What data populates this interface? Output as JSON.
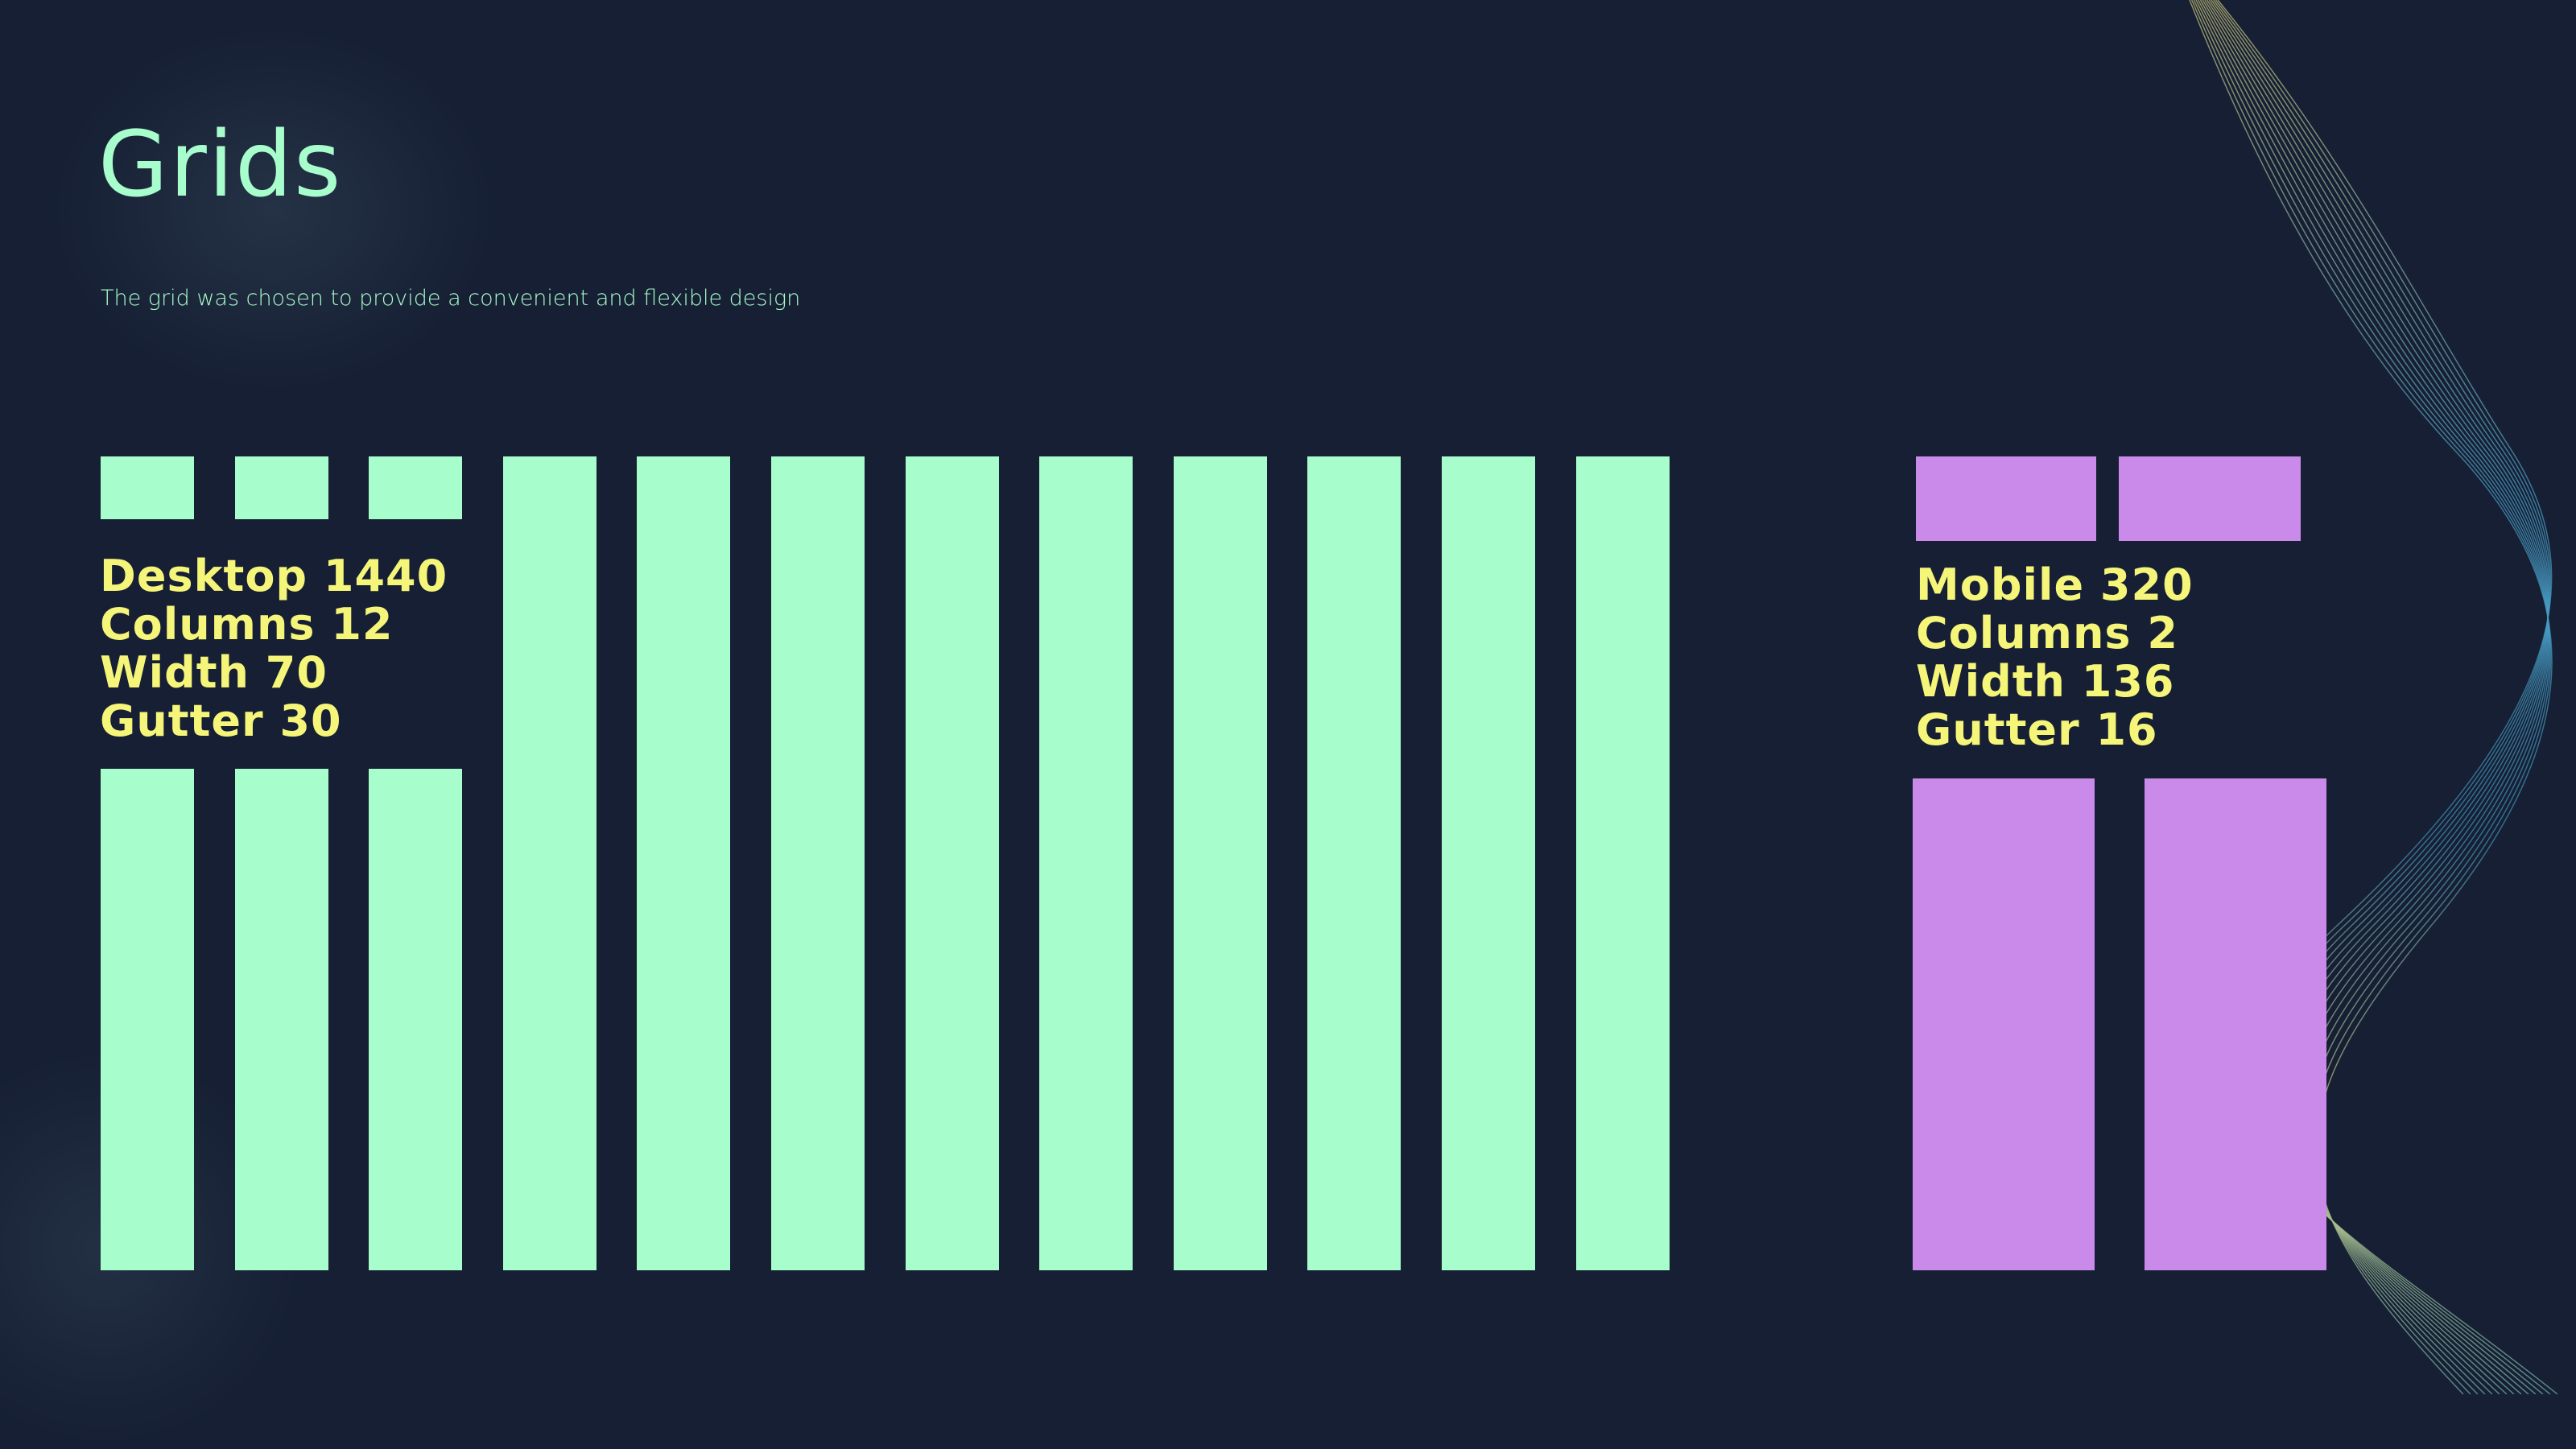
{
  "title": "Grids",
  "subtitle": "The grid was chosen to provide a convenient and flexible design",
  "colors": {
    "background": "#161f33",
    "desktop_columns": "#a8fdcc",
    "mobile_columns": "#c98aea",
    "spec_text": "#f5f57a",
    "title": "#a8fdcc"
  },
  "desktop": {
    "lines": [
      "Desktop 1440",
      "Columns 12",
      "Width 70",
      "Gutter 30"
    ]
  },
  "mobile": {
    "lines": [
      "Mobile 320",
      "Columns 2",
      "Width 136",
      "Gutter 16"
    ]
  }
}
